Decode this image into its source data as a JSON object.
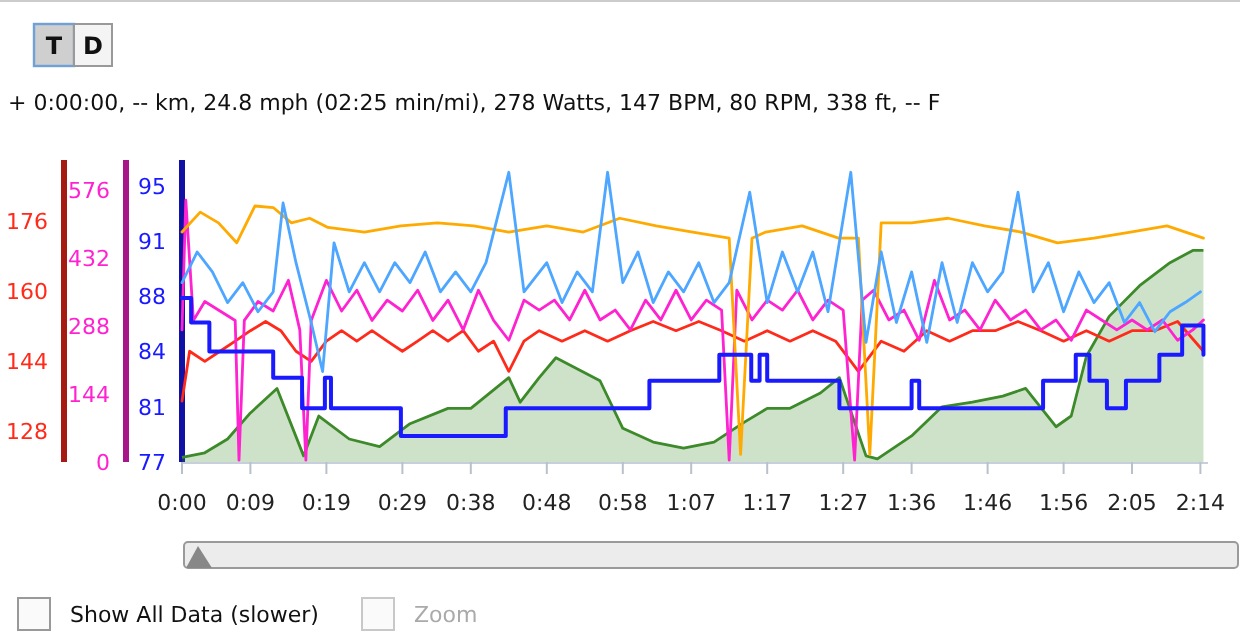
{
  "chart_data": {
    "type": "line",
    "subtitle": "+ 0:00:00, -- km, 24.8 mph (02:25 min/mi), 278 Watts, 147 BPM, 80 RPM, 338 ft, -- F",
    "annotations": [
      "T",
      "D",
      "Show All Data (slower)",
      "Zoom"
    ],
    "xlim": [
      0,
      135
    ],
    "xticks": [
      {
        "value": 0,
        "label": "0:00"
      },
      {
        "value": 9,
        "label": "0:09"
      },
      {
        "value": 19,
        "label": "0:19"
      },
      {
        "value": 29,
        "label": "0:29"
      },
      {
        "value": 38,
        "label": "0:38"
      },
      {
        "value": 48,
        "label": "0:48"
      },
      {
        "value": 58,
        "label": "0:58"
      },
      {
        "value": 67,
        "label": "1:07"
      },
      {
        "value": 77,
        "label": "1:17"
      },
      {
        "value": 87,
        "label": "1:27"
      },
      {
        "value": 96,
        "label": "1:36"
      },
      {
        "value": 106,
        "label": "1:46"
      },
      {
        "value": 116,
        "label": "1:56"
      },
      {
        "value": 125,
        "label": "2:05"
      },
      {
        "value": 134,
        "label": "2:14"
      }
    ],
    "ylim": [
      121,
      190
    ],
    "yticks": [
      128,
      144,
      160,
      176
    ],
    "y2lim": [
      0,
      640
    ],
    "y2ticks": [
      0,
      144,
      288,
      432,
      576
    ],
    "y3lim": [
      77,
      96.7
    ],
    "y3ticks": [
      {
        "value": 77,
        "label": "77"
      },
      {
        "value": 80.6,
        "label": "81"
      },
      {
        "value": 84.2,
        "label": "84"
      },
      {
        "value": 87.8,
        "label": "88"
      },
      {
        "value": 91.4,
        "label": "91"
      },
      {
        "value": 95,
        "label": "95"
      }
    ],
    "series": [
      {
        "color": "#ff2a1a",
        "x": [
          0,
          1,
          3,
          5,
          7,
          9,
          11,
          13,
          15,
          17,
          19,
          21,
          23,
          25,
          27,
          29,
          31,
          33,
          35,
          37,
          39,
          41,
          43,
          45,
          47,
          50,
          53,
          56,
          59,
          62,
          65,
          68,
          71,
          74,
          77,
          80,
          83,
          86,
          89,
          92,
          95,
          98,
          101,
          104,
          107,
          110,
          113,
          116,
          119,
          122,
          125,
          128,
          131,
          134.4
        ],
        "values": [
          134.9,
          146.3,
          144,
          146.3,
          148.6,
          151,
          153.1,
          151,
          146.3,
          144,
          148.6,
          151,
          148.6,
          151,
          148.6,
          146.3,
          148.6,
          151,
          148.6,
          151,
          146.3,
          148.6,
          141.7,
          148.6,
          151,
          148.6,
          151,
          148.6,
          151,
          153.1,
          151,
          153.1,
          151,
          148.6,
          151,
          148.6,
          151,
          148.6,
          141.7,
          148.6,
          146.3,
          151,
          148.6,
          151,
          151,
          153.1,
          151,
          148.6,
          151,
          148.6,
          151,
          151,
          153.1,
          146.3
        ]
      },
      {
        "color": "#ff22d0",
        "axis": "y2",
        "x": [
          0,
          0.5,
          1.5,
          3,
          5,
          7,
          7.5,
          8.2,
          10,
          12,
          14,
          15.5,
          16.3,
          17,
          19,
          21,
          23,
          25,
          27,
          29,
          31,
          33,
          35,
          37,
          39,
          41,
          43,
          45,
          47,
          49,
          51,
          53,
          55,
          57,
          59,
          61,
          63,
          65,
          67,
          69,
          71,
          72,
          73,
          75,
          77,
          79,
          81,
          83,
          85,
          87,
          88.5,
          89.5,
          91,
          93,
          95,
          97,
          99,
          101,
          103,
          105,
          107,
          109,
          111,
          113,
          115,
          117,
          119,
          121,
          123,
          125,
          127,
          129,
          131,
          133,
          134.4
        ],
        "values": [
          280,
          555,
          300,
          340,
          320,
          300,
          4,
          300,
          340,
          320,
          385,
          280,
          4,
          300,
          385,
          320,
          364,
          300,
          343,
          320,
          364,
          300,
          343,
          280,
          364,
          300,
          258,
          343,
          322,
          343,
          301,
          364,
          301,
          322,
          280,
          343,
          301,
          364,
          301,
          343,
          322,
          4,
          364,
          301,
          343,
          322,
          364,
          301,
          343,
          322,
          4,
          343,
          364,
          301,
          322,
          258,
          385,
          301,
          322,
          280,
          343,
          301,
          322,
          280,
          301,
          258,
          322,
          301,
          280,
          301,
          280,
          301,
          258,
          280,
          301
        ]
      },
      {
        "type": "step",
        "color": "#1a1aff",
        "axis": "y3",
        "x": [
          0,
          1.2,
          3.6,
          12,
          15.8,
          18.8,
          19.6,
          28.8,
          42.6,
          61.5,
          70.7,
          74.9,
          76,
          77,
          86.5,
          96,
          97,
          113.3,
          117.6,
          119.4,
          121.7,
          124.2,
          128.6,
          131.6,
          134.4
        ],
        "values": [
          87.7,
          86.1,
          84.2,
          82.5,
          80.5,
          82.5,
          80.5,
          78.7,
          80.5,
          82.3,
          84.0,
          82.3,
          84.0,
          82.3,
          80.5,
          82.3,
          80.5,
          82.3,
          84.0,
          82.3,
          80.5,
          82.3,
          84.0,
          85.9,
          84.0
        ]
      },
      {
        "color": "#ffaa00",
        "axis": "y3",
        "x": [
          0,
          2.4,
          4.8,
          7.2,
          9.6,
          12,
          14.4,
          16.8,
          19.2,
          24,
          28.8,
          33.6,
          38.4,
          43,
          48,
          52.8,
          57.6,
          62.4,
          67.2,
          72,
          73.5,
          75,
          76.8,
          81.6,
          86.4,
          89,
          90.5,
          92,
          96,
          100.8,
          105.6,
          110.4,
          115.2,
          120,
          124.8,
          129.6,
          134.4
        ],
        "values": [
          92.0,
          93.3,
          92.6,
          91.3,
          93.7,
          93.6,
          92.6,
          92.9,
          92.3,
          92.0,
          92.4,
          92.6,
          92.4,
          92.0,
          92.4,
          92.0,
          92.9,
          92.4,
          92.0,
          91.6,
          77.5,
          91.6,
          92.0,
          92.4,
          91.6,
          91.6,
          77.5,
          92.6,
          92.6,
          92.9,
          92.4,
          92.0,
          91.3,
          91.6,
          92.0,
          92.4,
          91.6
        ]
      },
      {
        "color": "#4da6ff",
        "axis": "y3",
        "x": [
          0,
          2,
          4,
          6,
          8,
          10,
          12,
          13.3,
          15,
          17,
          18.5,
          20,
          22,
          24,
          26,
          28,
          30,
          32,
          34,
          36,
          38,
          40,
          43,
          45,
          48,
          50,
          52,
          54,
          56,
          58,
          60,
          62,
          64,
          66,
          68,
          70,
          72,
          74.7,
          77,
          79,
          81,
          83,
          85,
          88,
          90,
          92,
          94,
          96,
          98,
          100,
          102,
          104,
          106,
          108,
          110,
          112,
          114,
          116,
          118,
          120,
          122,
          124,
          126,
          128,
          130,
          132,
          134
        ],
        "values": [
          88.7,
          90.7,
          89.4,
          87.4,
          88.7,
          86.8,
          88.1,
          93.9,
          90.0,
          86.1,
          82.9,
          91.3,
          88.1,
          90.0,
          88.1,
          90.0,
          88.7,
          90.7,
          88.1,
          89.4,
          88.1,
          90.0,
          95.9,
          88.1,
          90.0,
          87.4,
          89.4,
          88.1,
          95.9,
          88.7,
          90.7,
          87.4,
          89.4,
          88.1,
          90.0,
          87.4,
          88.7,
          94.6,
          87.4,
          90.7,
          88.1,
          90.7,
          86.8,
          95.9,
          84.8,
          90.7,
          86.1,
          89.4,
          84.8,
          90.0,
          86.1,
          90.0,
          88.1,
          89.4,
          94.6,
          88.1,
          90.0,
          86.8,
          89.4,
          87.4,
          88.7,
          86.1,
          87.4,
          85.5,
          86.8,
          87.4,
          88.1
        ]
      },
      {
        "type": "area",
        "color": "#3d8a2a",
        "axis": "y3",
        "x": [
          0,
          3,
          6,
          9,
          12.5,
          16,
          18,
          22,
          26,
          30,
          35,
          38,
          43,
          44.5,
          47,
          49.2,
          55,
          58,
          62,
          66,
          70,
          74,
          77,
          80,
          84,
          86.5,
          90,
          91.5,
          96,
          100,
          104,
          108,
          111,
          115,
          117,
          119,
          122,
          126,
          130,
          133,
          134.4
        ],
        "values": [
          77.3,
          77.6,
          78.5,
          80.2,
          81.8,
          77.4,
          80.0,
          78.5,
          78.0,
          79.5,
          80.5,
          80.5,
          82.5,
          80.9,
          82.5,
          83.8,
          82.3,
          79.2,
          78.3,
          77.9,
          78.3,
          79.6,
          80.5,
          80.5,
          81.5,
          82.5,
          77.4,
          77.2,
          78.7,
          80.6,
          80.9,
          81.3,
          81.8,
          79.3,
          80.0,
          83.9,
          86.5,
          88.5,
          90.0,
          90.8,
          90.8
        ]
      }
    ]
  }
}
